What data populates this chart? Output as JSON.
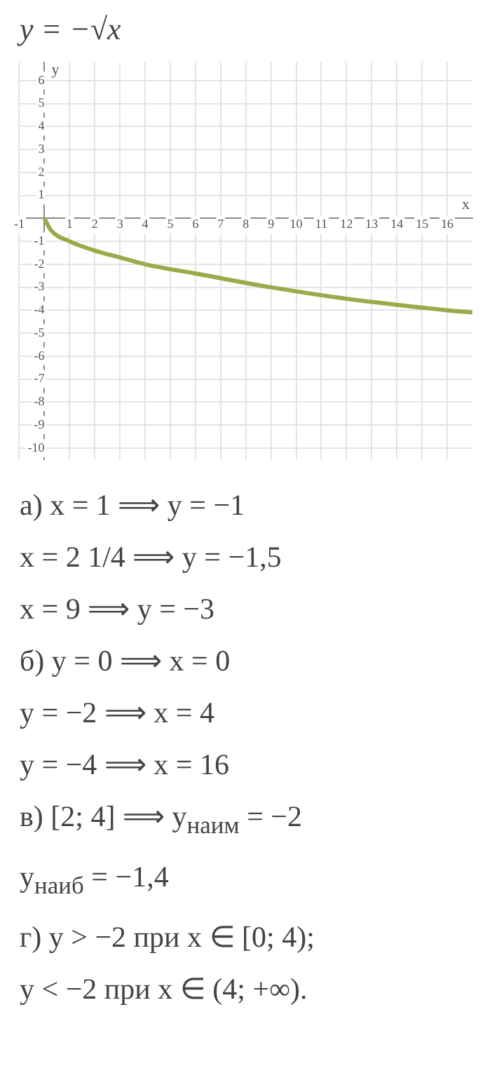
{
  "chart_data": {
    "type": "line",
    "title": "y = −√x",
    "xlabel": "x",
    "ylabel": "y",
    "x": [
      0,
      0.25,
      1,
      2,
      3,
      4,
      6,
      9,
      12,
      16,
      17
    ],
    "series": [
      {
        "color": "#9aab4a",
        "values": [
          0,
          -0.5,
          -1,
          -1.4,
          -1.7,
          -2,
          -2.4,
          -3,
          -3.5,
          -4,
          -4.1
        ]
      }
    ],
    "xlim": [
      -1,
      17
    ],
    "ylim": [
      -10.5,
      6.8
    ],
    "xticks": [
      -1,
      1,
      2,
      3,
      4,
      5,
      6,
      7,
      8,
      9,
      10,
      11,
      12,
      13,
      14,
      15,
      16
    ],
    "yticks": [
      -10,
      -9,
      -8,
      -7,
      -6,
      -5,
      -4,
      -3,
      -2,
      -1,
      1,
      2,
      3,
      4,
      5,
      6
    ],
    "grid": true,
    "legend": false,
    "marker": "none",
    "line_style": "solid",
    "annotations": [
      "а) x = 1 ⟹ y = −1",
      "x = 2 1/4 ⟹ y = −1,5",
      "x = 9 ⟹ y = −3",
      "б) y = 0 ⟹ x = 0",
      "y = −2 ⟹ x = 4",
      "y = −4 ⟹ x = 16",
      "в) [2; 4] ⟹ y$_{наим}$ = −2",
      "y$_{наиб}$ = −1,4",
      "г) y > −2  при x ∈ [0; 4);",
      "y < −2  при x ∈ (4; +∞)."
    ]
  }
}
